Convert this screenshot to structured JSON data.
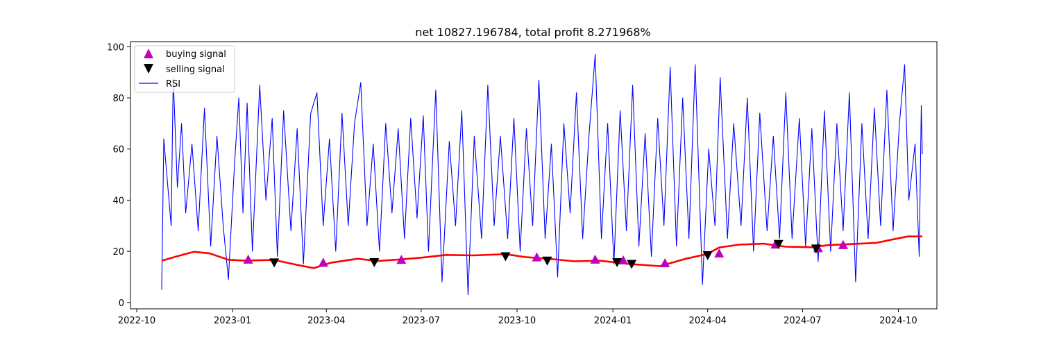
{
  "chart_data": {
    "type": "line",
    "title": "net 10827.196784, total profit 8.271968%",
    "xlabel": "",
    "ylabel": "",
    "x_range": [
      "2022-09-25",
      "2024-11-07"
    ],
    "ylim": [
      -2.5,
      102
    ],
    "x_ticks": [
      {
        "date": "2022-10-01",
        "label": "2022-10"
      },
      {
        "date": "2023-01-01",
        "label": "2023-01"
      },
      {
        "date": "2023-04-01",
        "label": "2023-04"
      },
      {
        "date": "2023-07-01",
        "label": "2023-07"
      },
      {
        "date": "2023-10-01",
        "label": "2023-10"
      },
      {
        "date": "2024-01-01",
        "label": "2024-01"
      },
      {
        "date": "2024-04-01",
        "label": "2024-04"
      },
      {
        "date": "2024-07-01",
        "label": "2024-07"
      },
      {
        "date": "2024-10-01",
        "label": "2024-10"
      }
    ],
    "y_ticks": [
      0,
      20,
      40,
      60,
      80,
      100
    ],
    "grid": false,
    "legend_position": "top-left",
    "legend": [
      {
        "label": "buying signal",
        "marker": "triangle-up",
        "color": "#bf00bf"
      },
      {
        "label": "selling signal",
        "marker": "triangle-down",
        "color": "#000000"
      },
      {
        "label": "RSI",
        "marker": "line",
        "color": "#0000ff"
      }
    ],
    "series": [
      {
        "name": "RSI",
        "color": "#0000ff",
        "points": [
          [
            "2022-10-25",
            5
          ],
          [
            "2022-10-27",
            64
          ],
          [
            "2022-11-03",
            30
          ],
          [
            "2022-11-05",
            88
          ],
          [
            "2022-11-09",
            45
          ],
          [
            "2022-11-13",
            70
          ],
          [
            "2022-11-17",
            35
          ],
          [
            "2022-11-23",
            62
          ],
          [
            "2022-11-29",
            28
          ],
          [
            "2022-12-05",
            76
          ],
          [
            "2022-12-11",
            22
          ],
          [
            "2022-12-17",
            65
          ],
          [
            "2022-12-23",
            30
          ],
          [
            "2022-12-28",
            9
          ],
          [
            "2023-01-03",
            55
          ],
          [
            "2023-01-07",
            80
          ],
          [
            "2023-01-11",
            35
          ],
          [
            "2023-01-15",
            78
          ],
          [
            "2023-01-20",
            20
          ],
          [
            "2023-01-27",
            85
          ],
          [
            "2023-02-02",
            40
          ],
          [
            "2023-02-08",
            72
          ],
          [
            "2023-02-13",
            18
          ],
          [
            "2023-02-19",
            75
          ],
          [
            "2023-02-26",
            28
          ],
          [
            "2023-03-04",
            68
          ],
          [
            "2023-03-10",
            15
          ],
          [
            "2023-03-17",
            74
          ],
          [
            "2023-03-23",
            82
          ],
          [
            "2023-03-29",
            30
          ],
          [
            "2023-04-04",
            64
          ],
          [
            "2023-04-10",
            20
          ],
          [
            "2023-04-16",
            74
          ],
          [
            "2023-04-22",
            30
          ],
          [
            "2023-04-28",
            70
          ],
          [
            "2023-05-04",
            86
          ],
          [
            "2023-05-10",
            30
          ],
          [
            "2023-05-16",
            62
          ],
          [
            "2023-05-22",
            20
          ],
          [
            "2023-05-28",
            70
          ],
          [
            "2023-06-03",
            35
          ],
          [
            "2023-06-09",
            68
          ],
          [
            "2023-06-15",
            25
          ],
          [
            "2023-06-21",
            72
          ],
          [
            "2023-06-27",
            33
          ],
          [
            "2023-07-03",
            73
          ],
          [
            "2023-07-08",
            20
          ],
          [
            "2023-07-15",
            83
          ],
          [
            "2023-07-21",
            8
          ],
          [
            "2023-07-28",
            63
          ],
          [
            "2023-08-03",
            30
          ],
          [
            "2023-08-09",
            75
          ],
          [
            "2023-08-15",
            3
          ],
          [
            "2023-08-21",
            65
          ],
          [
            "2023-08-28",
            25
          ],
          [
            "2023-09-03",
            85
          ],
          [
            "2023-09-09",
            30
          ],
          [
            "2023-09-15",
            65
          ],
          [
            "2023-09-22",
            25
          ],
          [
            "2023-09-28",
            72
          ],
          [
            "2023-10-04",
            20
          ],
          [
            "2023-10-10",
            68
          ],
          [
            "2023-10-16",
            30
          ],
          [
            "2023-10-22",
            87
          ],
          [
            "2023-10-28",
            25
          ],
          [
            "2023-11-03",
            62
          ],
          [
            "2023-11-09",
            10
          ],
          [
            "2023-11-15",
            70
          ],
          [
            "2023-11-21",
            35
          ],
          [
            "2023-11-27",
            82
          ],
          [
            "2023-12-03",
            25
          ],
          [
            "2023-12-09",
            65
          ],
          [
            "2023-12-15",
            97
          ],
          [
            "2023-12-21",
            25
          ],
          [
            "2023-12-27",
            70
          ],
          [
            "2024-01-02",
            15
          ],
          [
            "2024-01-08",
            75
          ],
          [
            "2024-01-14",
            28
          ],
          [
            "2024-01-20",
            85
          ],
          [
            "2024-01-26",
            22
          ],
          [
            "2024-02-01",
            66
          ],
          [
            "2024-02-07",
            18
          ],
          [
            "2024-02-13",
            72
          ],
          [
            "2024-02-19",
            30
          ],
          [
            "2024-02-25",
            92
          ],
          [
            "2024-03-02",
            22
          ],
          [
            "2024-03-08",
            80
          ],
          [
            "2024-03-14",
            25
          ],
          [
            "2024-03-20",
            93
          ],
          [
            "2024-03-27",
            7
          ],
          [
            "2024-04-02",
            60
          ],
          [
            "2024-04-08",
            30
          ],
          [
            "2024-04-13",
            88
          ],
          [
            "2024-04-20",
            25
          ],
          [
            "2024-04-26",
            70
          ],
          [
            "2024-05-03",
            30
          ],
          [
            "2024-05-09",
            80
          ],
          [
            "2024-05-15",
            20
          ],
          [
            "2024-05-21",
            74
          ],
          [
            "2024-05-28",
            28
          ],
          [
            "2024-06-03",
            65
          ],
          [
            "2024-06-09",
            25
          ],
          [
            "2024-06-15",
            82
          ],
          [
            "2024-06-21",
            25
          ],
          [
            "2024-06-28",
            72
          ],
          [
            "2024-07-04",
            22
          ],
          [
            "2024-07-10",
            68
          ],
          [
            "2024-07-16",
            16
          ],
          [
            "2024-07-22",
            75
          ],
          [
            "2024-07-28",
            20
          ],
          [
            "2024-08-03",
            70
          ],
          [
            "2024-08-09",
            28
          ],
          [
            "2024-08-15",
            82
          ],
          [
            "2024-08-21",
            8
          ],
          [
            "2024-08-27",
            70
          ],
          [
            "2024-09-02",
            25
          ],
          [
            "2024-09-08",
            76
          ],
          [
            "2024-09-14",
            30
          ],
          [
            "2024-09-20",
            83
          ],
          [
            "2024-09-26",
            28
          ],
          [
            "2024-10-02",
            70
          ],
          [
            "2024-10-07",
            93
          ],
          [
            "2024-10-11",
            40
          ],
          [
            "2024-10-17",
            62
          ],
          [
            "2024-10-21",
            18
          ],
          [
            "2024-10-23",
            77
          ],
          [
            "2024-10-24",
            58
          ]
        ]
      },
      {
        "name": "",
        "color": "#ff0000",
        "points": [
          [
            "2022-10-25",
            16.3
          ],
          [
            "2022-11-10",
            18.2
          ],
          [
            "2022-11-25",
            19.8
          ],
          [
            "2022-12-10",
            19.2
          ],
          [
            "2022-12-28",
            16.7
          ],
          [
            "2023-01-12",
            16.4
          ],
          [
            "2023-02-10",
            16.6
          ],
          [
            "2023-03-05",
            14.6
          ],
          [
            "2023-03-20",
            13.4
          ],
          [
            "2023-04-05",
            15.5
          ],
          [
            "2023-05-01",
            17.1
          ],
          [
            "2023-05-20",
            16.2
          ],
          [
            "2023-06-10",
            16.8
          ],
          [
            "2023-07-01",
            17.5
          ],
          [
            "2023-07-25",
            18.6
          ],
          [
            "2023-08-20",
            18.4
          ],
          [
            "2023-09-20",
            18.9
          ],
          [
            "2023-10-10",
            17.7
          ],
          [
            "2023-11-05",
            16.9
          ],
          [
            "2023-11-25",
            16.1
          ],
          [
            "2023-12-20",
            16.3
          ],
          [
            "2024-01-15",
            15.1
          ],
          [
            "2024-02-15",
            14.2
          ],
          [
            "2024-03-10",
            17.0
          ],
          [
            "2024-04-01",
            19.0
          ],
          [
            "2024-04-12",
            21.5
          ],
          [
            "2024-05-01",
            22.6
          ],
          [
            "2024-05-25",
            23.0
          ],
          [
            "2024-06-15",
            21.8
          ],
          [
            "2024-07-10",
            21.6
          ],
          [
            "2024-07-25",
            22.4
          ],
          [
            "2024-08-20",
            22.9
          ],
          [
            "2024-09-10",
            23.3
          ],
          [
            "2024-09-25",
            24.6
          ],
          [
            "2024-10-10",
            25.8
          ],
          [
            "2024-10-24",
            25.8
          ]
        ]
      }
    ],
    "buy_signals": [
      [
        "2023-01-16",
        16.8
      ],
      [
        "2023-03-29",
        15.6
      ],
      [
        "2023-06-12",
        16.7
      ],
      [
        "2023-10-20",
        17.7
      ],
      [
        "2023-12-15",
        16.8
      ],
      [
        "2024-01-11",
        16.5
      ],
      [
        "2024-02-20",
        15.4
      ],
      [
        "2024-04-12",
        19.2
      ],
      [
        "2024-06-05",
        22.7
      ],
      [
        "2024-07-16",
        21.3
      ],
      [
        "2024-08-09",
        22.5
      ]
    ],
    "sell_signals": [
      [
        "2023-02-10",
        15.6
      ],
      [
        "2023-05-17",
        15.7
      ],
      [
        "2023-09-20",
        18.0
      ],
      [
        "2023-10-30",
        16.3
      ],
      [
        "2024-01-05",
        15.7
      ],
      [
        "2024-01-19",
        15.0
      ],
      [
        "2024-04-01",
        18.4
      ],
      [
        "2024-06-08",
        22.8
      ],
      [
        "2024-07-14",
        21.0
      ]
    ]
  }
}
